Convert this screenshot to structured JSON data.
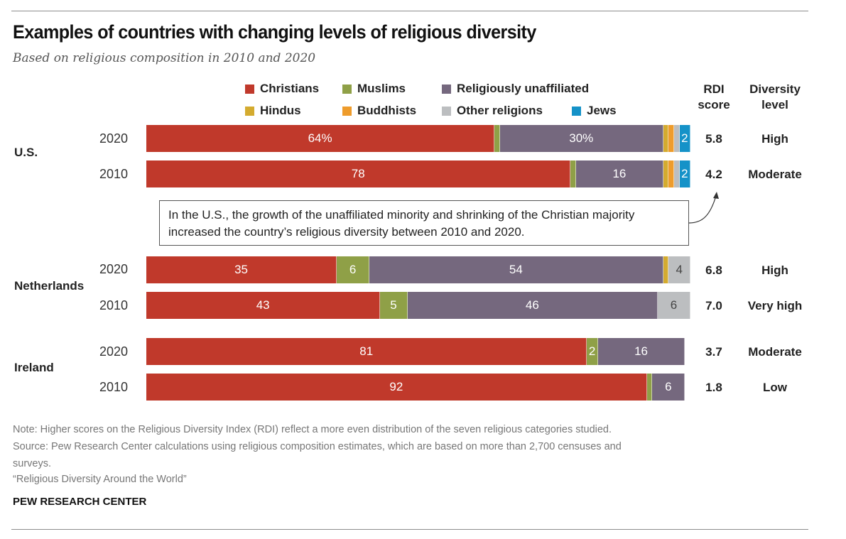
{
  "title": "Examples of countries with changing levels of religious diversity",
  "subtitle": "Based on religious composition in 2010 and 2020",
  "legend": [
    {
      "name": "Christians",
      "color": "#c0392b"
    },
    {
      "name": "Muslims",
      "color": "#8fa047"
    },
    {
      "name": "Religiously unaffiliated",
      "color": "#75687e"
    },
    {
      "name": "Hindus",
      "color": "#d4ab2f"
    },
    {
      "name": "Buddhists",
      "color": "#ee9c2c"
    },
    {
      "name": "Other religions",
      "color": "#bcbec0"
    },
    {
      "name": "Jews",
      "color": "#1592c8"
    }
  ],
  "columns": {
    "rdi_line1": "RDI",
    "rdi_line2": "score",
    "level_line1": "Diversity",
    "level_line2": "level"
  },
  "callout": "In the U.S., the growth of the unaffiliated minority and shrinking of the Christian majority increased the country’s religious diversity between 2010 and 2020.",
  "notes": {
    "note": "Note: Higher scores on the Religious Diversity Index (RDI) reflect a more even distribution of the seven religious categories studied.",
    "source1": "Source: Pew Research Center calculations using religious composition estimates, which are based on more than 2,700 censuses and",
    "source2": "surveys.",
    "report": "“Religious Diversity Around the World”",
    "brand": "PEW RESEARCH CENTER"
  },
  "chart_data": {
    "type": "bar",
    "orientation": "horizontal-stacked",
    "title": "Examples of countries with changing levels of religious diversity",
    "subtitle": "Based on religious composition in 2010 and 2020",
    "unit": "%",
    "xlim": [
      0,
      100
    ],
    "series_names": [
      "Christians",
      "Muslims",
      "Religiously unaffiliated",
      "Hindus",
      "Buddhists",
      "Other religions",
      "Jews"
    ],
    "groups": [
      {
        "country": "U.S.",
        "rows": [
          {
            "year": "2020",
            "values": [
              64,
              1,
              30,
              1,
              1,
              1,
              2
            ],
            "labels": [
              "64%",
              "",
              "30%",
              "",
              "",
              "",
              "2"
            ],
            "rdi": "5.8",
            "level": "High"
          },
          {
            "year": "2010",
            "values": [
              78,
              1,
              16,
              1,
              1,
              1,
              2
            ],
            "labels": [
              "78",
              "",
              "16",
              "",
              "",
              "",
              "2"
            ],
            "rdi": "4.2",
            "level": "Moderate"
          }
        ]
      },
      {
        "country": "Netherlands",
        "rows": [
          {
            "year": "2020",
            "values": [
              35,
              6,
              54,
              1,
              0,
              4,
              0
            ],
            "labels": [
              "35",
              "6",
              "54",
              "",
              "",
              "4",
              ""
            ],
            "rdi": "6.8",
            "level": "High"
          },
          {
            "year": "2010",
            "values": [
              43,
              5,
              46,
              0,
              0,
              6,
              0
            ],
            "labels": [
              "43",
              "5",
              "46",
              "",
              "",
              "6",
              ""
            ],
            "rdi": "7.0",
            "level": "Very high"
          }
        ]
      },
      {
        "country": "Ireland",
        "rows": [
          {
            "year": "2020",
            "values": [
              81,
              2,
              16,
              0,
              0,
              0,
              0
            ],
            "labels": [
              "81",
              "2",
              "16",
              "",
              "",
              "",
              ""
            ],
            "rdi": "3.7",
            "level": "Moderate"
          },
          {
            "year": "2010",
            "values": [
              92,
              1,
              6,
              0,
              0,
              0,
              0
            ],
            "labels": [
              "92",
              "",
              "6",
              "",
              "",
              "",
              ""
            ],
            "rdi": "1.8",
            "level": "Low"
          }
        ]
      }
    ]
  }
}
